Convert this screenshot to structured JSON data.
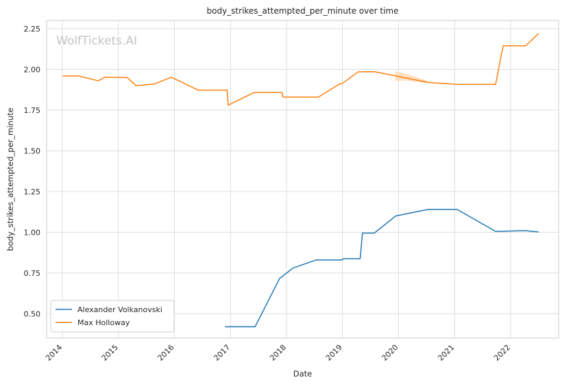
{
  "chart_data": {
    "type": "line",
    "title": "body_strikes_attempted_per_minute over time",
    "xlabel": "Date",
    "ylabel": "body_strikes_attempted_per_minute",
    "watermark": "WolfTickets.AI",
    "xlim": [
      "2013-09-20",
      "2022-11-10"
    ],
    "ylim": [
      0.35,
      2.3
    ],
    "x_ticks": [
      "2014",
      "2015",
      "2016",
      "2017",
      "2018",
      "2019",
      "2020",
      "2021",
      "2022"
    ],
    "y_ticks": [
      "0.50",
      "0.75",
      "1.00",
      "1.25",
      "1.50",
      "1.75",
      "2.00",
      "2.25"
    ],
    "y_tick_values": [
      0.5,
      0.75,
      1.0,
      1.25,
      1.5,
      1.75,
      2.0,
      2.25
    ],
    "grid": true,
    "legend_position": "lower-left",
    "series": [
      {
        "name": "Alexander Volkanovski",
        "color": "#1f77b4",
        "points": [
          [
            "2016-11-26",
            0.42
          ],
          [
            "2017-06-10",
            0.42
          ],
          [
            "2017-11-19",
            0.72
          ],
          [
            "2017-11-30",
            0.725
          ],
          [
            "2018-02-11",
            0.78
          ],
          [
            "2018-07-14",
            0.83
          ],
          [
            "2018-12-29",
            0.83
          ],
          [
            "2019-01-06",
            0.838
          ],
          [
            "2019-04-26",
            0.838
          ],
          [
            "2019-05-11",
            0.995
          ],
          [
            "2019-07-27",
            0.995
          ],
          [
            "2019-12-14",
            1.1
          ],
          [
            "2020-07-11",
            1.14
          ],
          [
            "2021-01-18",
            1.14
          ],
          [
            "2021-09-25",
            1.005
          ],
          [
            "2022-04-09",
            1.01
          ],
          [
            "2022-07-02",
            1.002
          ]
        ]
      },
      {
        "name": "Max Holloway",
        "color": "#ff7f0e",
        "band_color": "#ffd9b3",
        "points": [
          [
            "2014-01-04",
            1.96
          ],
          [
            "2014-04-16",
            1.96
          ],
          [
            "2014-08-23",
            1.93
          ],
          [
            "2014-10-04",
            1.952
          ],
          [
            "2015-02-28",
            1.95
          ],
          [
            "2015-04-25",
            1.9
          ],
          [
            "2015-08-23",
            1.91
          ],
          [
            "2015-12-12",
            1.952
          ],
          [
            "2016-06-04",
            1.873
          ],
          [
            "2016-12-10",
            1.873
          ],
          [
            "2016-12-17",
            1.78
          ],
          [
            "2017-06-03",
            1.858
          ],
          [
            "2017-12-02",
            1.858
          ],
          [
            "2017-12-09",
            1.83
          ],
          [
            "2018-07-28",
            1.83
          ],
          [
            "2018-12-15",
            1.912
          ],
          [
            "2018-12-29",
            1.912
          ],
          [
            "2019-04-13",
            1.985
          ],
          [
            "2019-07-27",
            1.986
          ],
          [
            "2019-12-14",
            1.96
          ],
          [
            "2020-07-11",
            1.92
          ],
          [
            "2021-01-16",
            1.908
          ],
          [
            "2021-09-25",
            1.908
          ],
          [
            "2021-11-13",
            2.145
          ],
          [
            "2022-04-09",
            2.145
          ],
          [
            "2022-07-02",
            2.22
          ]
        ],
        "band": [
          [
            "2019-12-10",
            1.93,
            1.99
          ],
          [
            "2020-03-01",
            1.93,
            1.97
          ],
          [
            "2020-07-11",
            1.915,
            1.93
          ]
        ]
      }
    ]
  }
}
